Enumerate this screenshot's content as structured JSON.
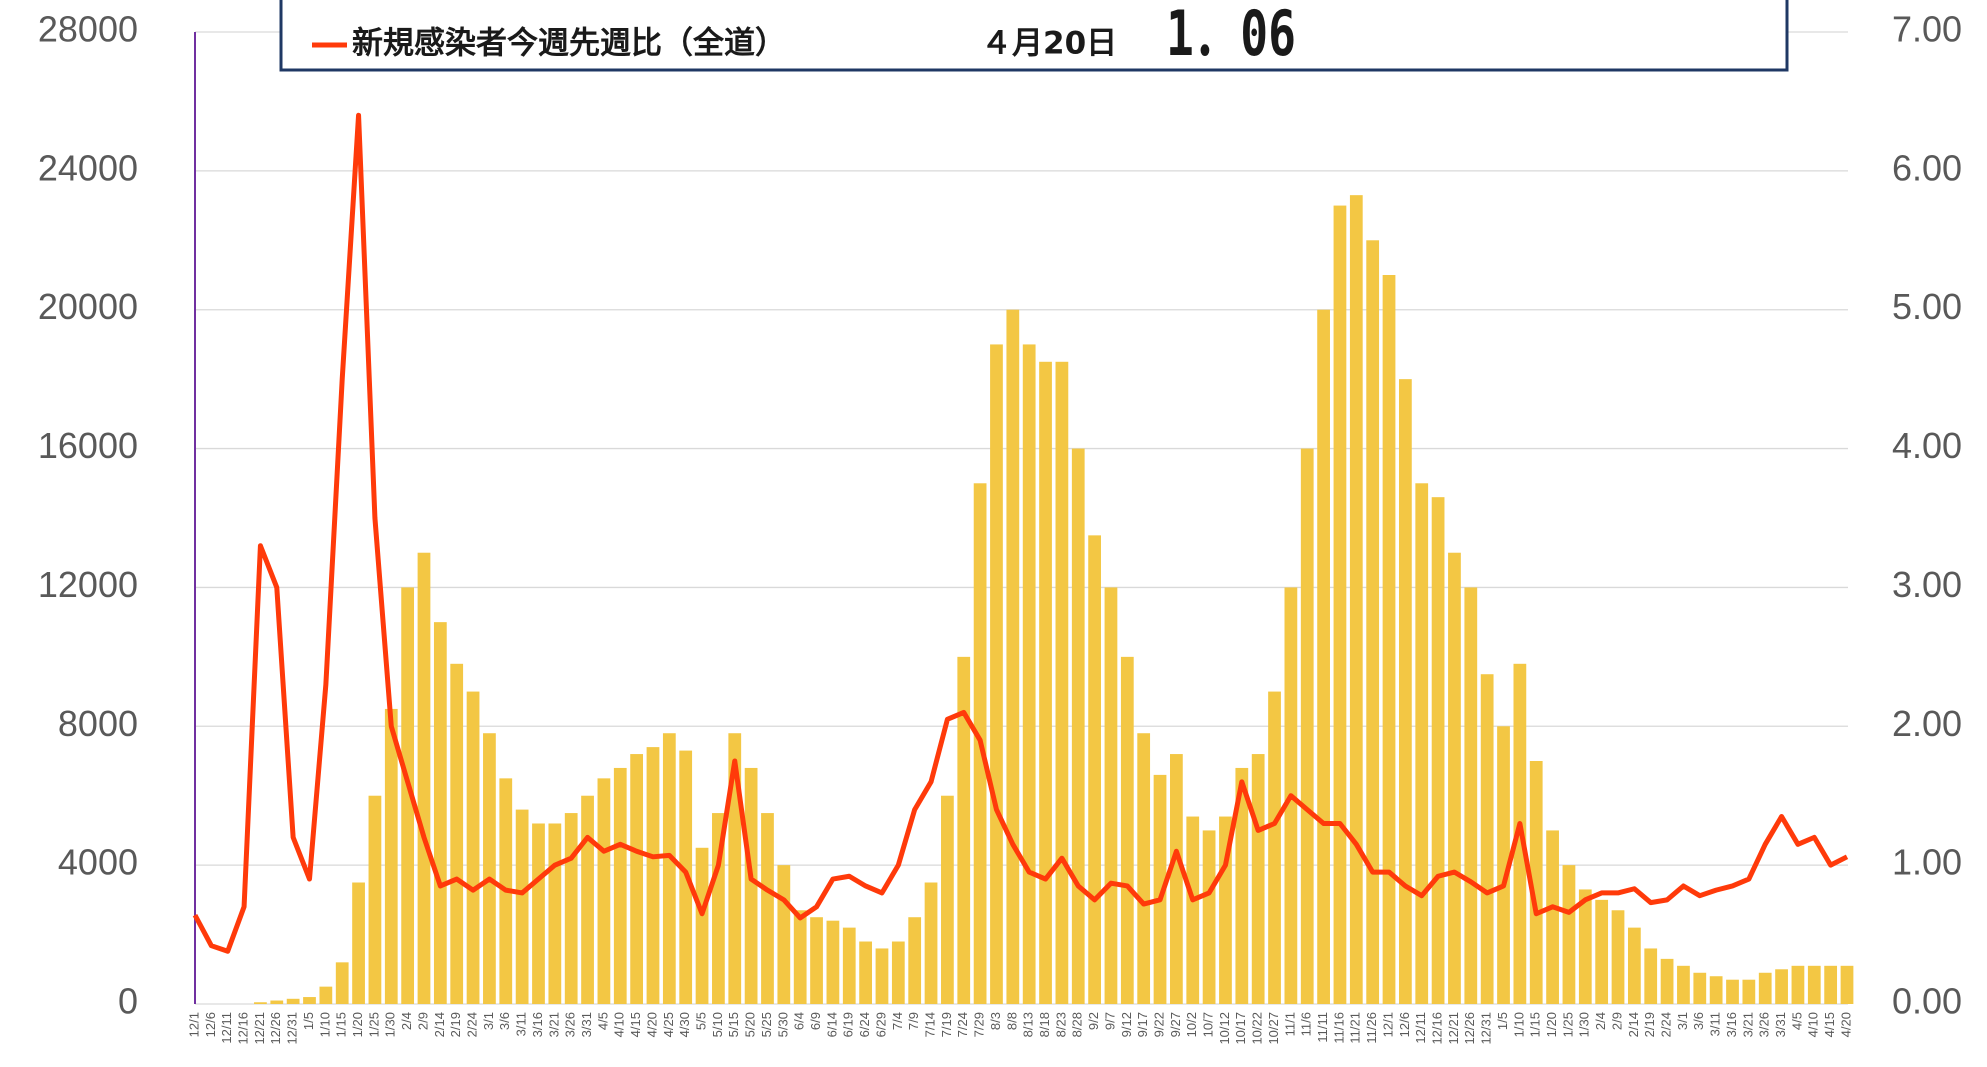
{
  "chart_data": {
    "type": "bar_line",
    "legend_title_date": "４月20日",
    "legend_value": "1．06",
    "categories": [
      "12/1",
      "12/6",
      "12/11",
      "12/16",
      "12/21",
      "12/26",
      "12/31",
      "1/5",
      "1/10",
      "1/15",
      "1/20",
      "1/25",
      "1/30",
      "2/4",
      "2/9",
      "2/14",
      "2/19",
      "2/24",
      "3/1",
      "3/6",
      "3/11",
      "3/16",
      "3/21",
      "3/26",
      "3/31",
      "4/5",
      "4/10",
      "4/15",
      "4/20",
      "4/25",
      "4/30",
      "5/5",
      "5/10",
      "5/15",
      "5/20",
      "5/25",
      "5/30",
      "6/4",
      "6/9",
      "6/14",
      "6/19",
      "6/24",
      "6/29",
      "7/4",
      "7/9",
      "7/14",
      "7/19",
      "7/24",
      "7/29",
      "8/3",
      "8/8",
      "8/13",
      "8/18",
      "8/23",
      "8/28",
      "9/2",
      "9/7",
      "9/12",
      "9/17",
      "9/22",
      "9/27",
      "10/2",
      "10/7",
      "10/12",
      "10/17",
      "10/22",
      "10/27",
      "11/1",
      "11/6",
      "11/11",
      "11/16",
      "11/21",
      "11/26",
      "12/1",
      "12/6",
      "12/11",
      "12/16",
      "12/21",
      "12/26",
      "12/31",
      "1/5",
      "1/10",
      "1/15",
      "1/20",
      "1/25",
      "1/30",
      "2/4",
      "2/9",
      "2/14",
      "2/19",
      "2/24",
      "3/1",
      "3/6",
      "3/11",
      "3/16",
      "3/21",
      "3/26",
      "3/31",
      "4/5",
      "4/10",
      "4/15",
      "4/20"
    ],
    "series": [
      {
        "color": "#f3c744",
        "values": [
          0,
          0,
          0,
          0,
          50,
          100,
          150,
          200,
          500,
          1200,
          3500,
          6000,
          8500,
          12000,
          13000,
          11000,
          9800,
          9000,
          7800,
          6500,
          5600,
          5200,
          5200,
          5500,
          6000,
          6500,
          6800,
          7200,
          7400,
          7800,
          7300,
          4500,
          5500,
          7800,
          6800,
          5500,
          4000,
          2700,
          2500,
          2400,
          2200,
          1800,
          1600,
          1800,
          2500,
          3500,
          6000,
          10000,
          15000,
          19000,
          20000,
          19000,
          18500,
          18500,
          16000,
          13500,
          12000,
          10000,
          7800,
          6600,
          7200,
          5400,
          5000,
          5400,
          6800,
          7200,
          9000,
          12000,
          16000,
          20000,
          23000,
          23300,
          22000,
          21000,
          18000,
          15000,
          14600,
          13000,
          12000,
          9500,
          8000,
          9800,
          7000,
          5000,
          4000,
          3300,
          3000,
          2700,
          2200,
          1600,
          1300,
          1100,
          900,
          800,
          700,
          700,
          900,
          1000,
          1100,
          1100,
          1100,
          1100
        ]
      },
      {
        "name": "新規感染者今週先週比（全道）",
        "color": "#ff3a0a",
        "axis": "y2",
        "values": [
          0.64,
          0.42,
          0.38,
          0.7,
          3.3,
          3.0,
          1.2,
          0.9,
          2.3,
          4.5,
          6.4,
          3.5,
          2.0,
          1.6,
          1.2,
          0.85,
          0.9,
          0.82,
          0.9,
          0.82,
          0.8,
          0.9,
          1.0,
          1.05,
          1.2,
          1.1,
          1.15,
          1.1,
          1.06,
          1.07,
          0.95,
          0.65,
          1.0,
          1.75,
          0.9,
          0.82,
          0.75,
          0.62,
          0.7,
          0.9,
          0.92,
          0.85,
          0.8,
          1.0,
          1.4,
          1.6,
          2.05,
          2.1,
          1.9,
          1.4,
          1.15,
          0.95,
          0.9,
          1.05,
          0.85,
          0.75,
          0.87,
          0.85,
          0.72,
          0.75,
          1.1,
          0.75,
          0.8,
          1.0,
          1.6,
          1.25,
          1.3,
          1.5,
          1.4,
          1.3,
          1.3,
          1.15,
          0.95,
          0.95,
          0.85,
          0.78,
          0.92,
          0.95,
          0.88,
          0.8,
          0.85,
          1.3,
          0.65,
          0.7,
          0.66,
          0.75,
          0.8,
          0.8,
          0.83,
          0.73,
          0.75,
          0.85,
          0.78,
          0.82,
          0.85,
          0.9,
          1.15,
          1.35,
          1.15,
          1.2,
          1.0,
          1.06
        ]
      }
    ],
    "ylim": [
      0,
      28000
    ],
    "yticks": [
      0,
      4000,
      8000,
      12000,
      16000,
      20000,
      24000,
      28000
    ],
    "y2lim": [
      0,
      7
    ],
    "y2ticks": [
      {
        "value": 0,
        "label": "0.00"
      },
      {
        "value": 1,
        "label": "1.00"
      },
      {
        "value": 2,
        "label": "2.00"
      },
      {
        "value": 3,
        "label": "3.00"
      },
      {
        "value": 4,
        "label": "4.00"
      },
      {
        "value": 5,
        "label": "5.00"
      },
      {
        "value": 6,
        "label": "6.00"
      },
      {
        "value": 7,
        "label": "7.00"
      }
    ],
    "grid": true
  }
}
